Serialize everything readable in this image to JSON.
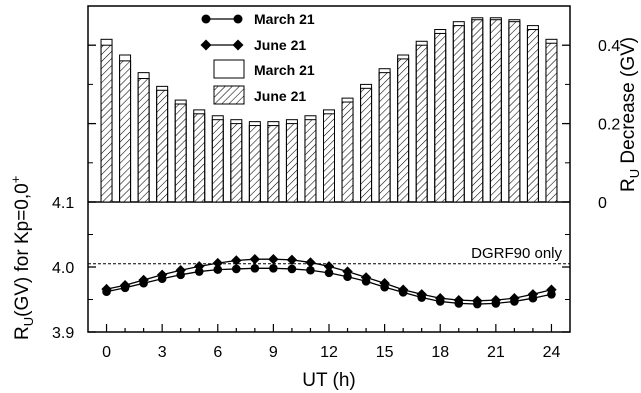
{
  "chart_data": [
    {
      "type": "bar",
      "panel": "top",
      "ylabel_right": "R",
      "ylabel_right_sub": "U",
      "ylabel_right_suffix": " Decrease (GV)",
      "ylim": [
        0,
        0.5
      ],
      "yticks": [
        0,
        0.2,
        0.4
      ],
      "ytick_labels": [
        "0",
        "0.2",
        "0.4"
      ],
      "left_corner_label": "4.1",
      "x": [
        0,
        1,
        2,
        3,
        4,
        5,
        6,
        7,
        8,
        9,
        10,
        11,
        12,
        13,
        14,
        15,
        16,
        17,
        18,
        19,
        20,
        21,
        22,
        23,
        24
      ],
      "series": [
        {
          "name": "March 21",
          "style": "open",
          "values": [
            0.415,
            0.375,
            0.33,
            0.295,
            0.26,
            0.235,
            0.22,
            0.21,
            0.205,
            0.205,
            0.21,
            0.22,
            0.235,
            0.265,
            0.3,
            0.34,
            0.375,
            0.41,
            0.44,
            0.46,
            0.47,
            0.47,
            0.465,
            0.45,
            0.415
          ]
        },
        {
          "name": "June 21",
          "style": "hatched",
          "values": [
            0.4,
            0.36,
            0.315,
            0.285,
            0.25,
            0.225,
            0.21,
            0.2,
            0.195,
            0.195,
            0.2,
            0.21,
            0.225,
            0.255,
            0.29,
            0.33,
            0.365,
            0.4,
            0.43,
            0.45,
            0.465,
            0.465,
            0.46,
            0.44,
            0.405
          ]
        }
      ],
      "legend": [
        {
          "name": "March 21",
          "marker": "circle-line"
        },
        {
          "name": "June 21",
          "marker": "diamond-line"
        },
        {
          "name": "March 21",
          "marker": "open-box"
        },
        {
          "name": "June 21",
          "marker": "hatched-box"
        }
      ],
      "legend_position": "top-center"
    },
    {
      "type": "line",
      "panel": "bottom",
      "ylabel_left_main": "R",
      "ylabel_left_sub": "U",
      "ylabel_left_mid": "(GV) for Kp=0,0",
      "ylabel_left_sup": "+",
      "xlabel": "UT (h)",
      "xlim": [
        -1,
        25
      ],
      "xticks": [
        0,
        3,
        6,
        9,
        12,
        15,
        18,
        21,
        24
      ],
      "xtick_labels": [
        "0",
        "3",
        "6",
        "9",
        "12",
        "15",
        "18",
        "21",
        "24"
      ],
      "ylim": [
        3.9,
        4.1
      ],
      "yticks": [
        3.9,
        4.0
      ],
      "ytick_labels": [
        "3.9",
        "4.0"
      ],
      "reference_line": {
        "value": 4.005,
        "label": "DGRF90 only"
      },
      "x": [
        0,
        1,
        2,
        3,
        4,
        5,
        6,
        7,
        8,
        9,
        10,
        11,
        12,
        13,
        14,
        15,
        16,
        17,
        18,
        19,
        20,
        21,
        22,
        23,
        24
      ],
      "series": [
        {
          "name": "March 21",
          "marker": "circle",
          "values": [
            3.962,
            3.968,
            3.975,
            3.982,
            3.988,
            3.993,
            3.996,
            3.997,
            3.998,
            3.998,
            3.997,
            3.995,
            3.991,
            3.985,
            3.978,
            3.969,
            3.961,
            3.953,
            3.947,
            3.944,
            3.943,
            3.944,
            3.947,
            3.952,
            3.958
          ]
        },
        {
          "name": "June 21",
          "marker": "diamond",
          "values": [
            3.966,
            3.972,
            3.98,
            3.988,
            3.995,
            4.001,
            4.006,
            4.01,
            4.012,
            4.012,
            4.011,
            4.007,
            4.001,
            3.993,
            3.984,
            3.975,
            3.965,
            3.958,
            3.952,
            3.949,
            3.948,
            3.949,
            3.952,
            3.958,
            3.965
          ]
        }
      ]
    }
  ]
}
